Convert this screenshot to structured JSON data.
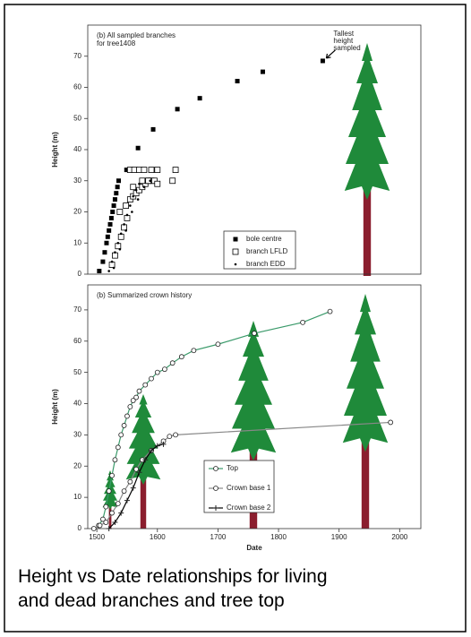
{
  "chart_data": [
    {
      "type": "scatter",
      "title": [
        "(b) All sampled branches",
        "for tree1408"
      ],
      "ylabel": "Height (m)",
      "annotation": [
        "Tallest",
        "height",
        "sampled"
      ],
      "xlim": [
        1485,
        2035
      ],
      "ylim": [
        0,
        80
      ],
      "yticks": [
        0,
        10,
        20,
        30,
        40,
        50,
        60,
        70
      ],
      "series": [
        {
          "name": "bole centre",
          "marker": "filled-square",
          "color": "#000000",
          "x": [
            1504,
            1510,
            1513,
            1516,
            1518,
            1520,
            1522,
            1524,
            1526,
            1528,
            1530,
            1532,
            1534,
            1536,
            1549,
            1568,
            1593,
            1633,
            1670,
            1732,
            1774,
            1873
          ],
          "values": [
            1,
            4,
            7,
            10,
            12,
            14,
            16,
            18,
            20,
            22,
            24,
            26,
            28,
            30,
            33.5,
            40.5,
            46.5,
            53,
            56.5,
            62,
            65,
            68.5
          ]
        },
        {
          "name": "branch LFLD",
          "marker": "open-square",
          "color": "#000000",
          "x": [
            1525,
            1530,
            1535,
            1540,
            1545,
            1550,
            1538,
            1548,
            1555,
            1560,
            1565,
            1570,
            1575,
            1580,
            1585,
            1590,
            1555,
            1562,
            1570,
            1578,
            1590,
            1600,
            1575,
            1585,
            1595,
            1560,
            1600,
            1625,
            1630
          ],
          "values": [
            3,
            6,
            9,
            12,
            15,
            18,
            20,
            22,
            24,
            25,
            26,
            27,
            28,
            29,
            30,
            30,
            33.5,
            33.5,
            33.5,
            33.5,
            33.5,
            33.5,
            30,
            30,
            30,
            28,
            29,
            30,
            33.5
          ]
        },
        {
          "name": "branch EDD",
          "marker": "dot",
          "color": "#000000",
          "x": [
            1520,
            1525,
            1530,
            1535,
            1540,
            1545,
            1550,
            1555,
            1560,
            1565,
            1570,
            1528,
            1538,
            1548,
            1558,
            1568,
            1578,
            1588
          ],
          "values": [
            1,
            4,
            7,
            10,
            13,
            16,
            19,
            22,
            25,
            27,
            29,
            2,
            8,
            14,
            20,
            24,
            28,
            30
          ]
        }
      ]
    },
    {
      "type": "line",
      "title": [
        "(b) Summarized crown history"
      ],
      "ylabel": "Height (m)",
      "xlabel": "Date",
      "xlim": [
        1485,
        2035
      ],
      "ylim": [
        0,
        78
      ],
      "xticks": [
        1500,
        1600,
        1700,
        1800,
        1900,
        2000
      ],
      "yticks": [
        0,
        10,
        20,
        30,
        40,
        50,
        60,
        70
      ],
      "series": [
        {
          "name": "Top",
          "marker": "open-circle",
          "color": "#3a9a6a",
          "x": [
            1503,
            1510,
            1515,
            1520,
            1525,
            1530,
            1535,
            1540,
            1545,
            1550,
            1555,
            1560,
            1565,
            1570,
            1580,
            1590,
            1600,
            1612,
            1625,
            1640,
            1660,
            1700,
            1760,
            1840,
            1885
          ],
          "values": [
            1,
            3,
            7,
            12,
            17,
            22,
            26,
            30,
            33,
            36,
            39,
            41,
            42,
            44,
            46,
            48,
            50,
            51,
            53,
            55,
            57,
            59,
            62.5,
            66,
            69.5
          ]
        },
        {
          "name": "Crown base 1",
          "marker": "open-circle",
          "color": "#888888",
          "x": [
            1495,
            1505,
            1515,
            1525,
            1535,
            1545,
            1555,
            1565,
            1575,
            1590,
            1610,
            1620,
            1630,
            1985
          ],
          "values": [
            0,
            1,
            2,
            5,
            8,
            12,
            15,
            19,
            22,
            25,
            28,
            29.5,
            30,
            34
          ]
        },
        {
          "name": "Crown base 2",
          "marker": "plus",
          "color": "#000000",
          "x": [
            1520,
            1530,
            1540,
            1550,
            1560,
            1570,
            1580,
            1590,
            1600,
            1610
          ],
          "values": [
            0,
            2,
            5,
            9,
            13,
            18,
            22,
            25,
            26.5,
            27
          ]
        }
      ]
    }
  ],
  "caption": [
    "Height vs Date relationships for living",
    "and dead branches and tree top"
  ]
}
